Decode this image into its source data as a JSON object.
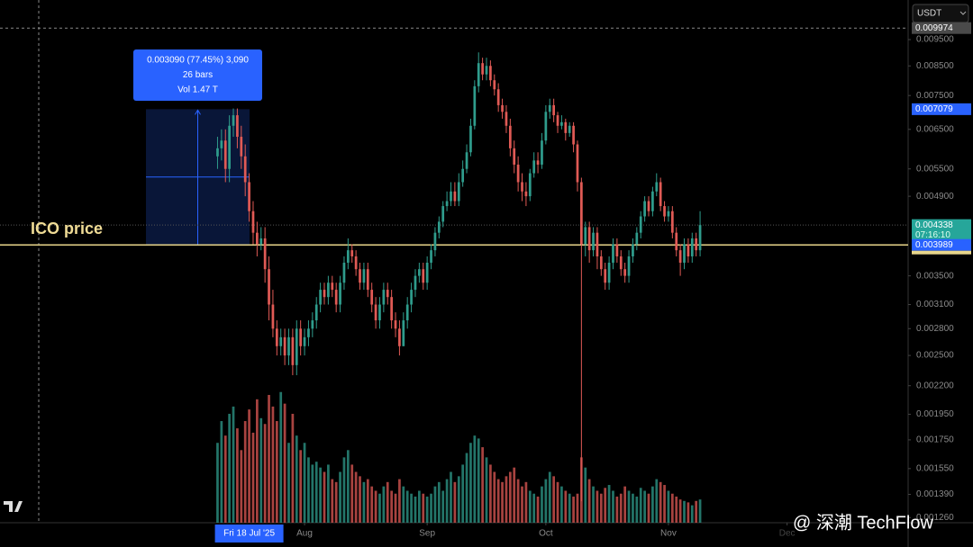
{
  "chart_data": {
    "type": "candlestick",
    "currency": "USDT",
    "annotation": "ICO price",
    "tooltip": {
      "lines": [
        "0.003090 (77.45%) 3,090",
        "26 bars",
        "Vol 1.47 T"
      ]
    },
    "watermark": "@ 深潮 TechFlow",
    "up_color": "#2f9c8c",
    "down_color": "#e05a55",
    "log_scale": true,
    "ylim": [
      0.001233,
      0.01123
    ],
    "xlim": [
      -55,
      174.6
    ],
    "volume_ylim": [
      0,
      360
    ],
    "yticks": [
      {
        "value": 0.0095,
        "label": "0.009500"
      },
      {
        "value": 0.0085,
        "label": "0.008500"
      },
      {
        "value": 0.0075,
        "label": "0.007500"
      },
      {
        "value": 0.0065,
        "label": "0.006500"
      },
      {
        "value": 0.0055,
        "label": "0.005500"
      },
      {
        "value": 0.0049,
        "label": "0.004900"
      },
      {
        "value": 0.0035,
        "label": "0.003500"
      },
      {
        "value": 0.0031,
        "label": "0.003100"
      },
      {
        "value": 0.0028,
        "label": "0.002800"
      },
      {
        "value": 0.0025,
        "label": "0.002500"
      },
      {
        "value": 0.0022,
        "label": "0.002200"
      },
      {
        "value": 0.00195,
        "label": "0.001950"
      },
      {
        "value": 0.00175,
        "label": "0.001750"
      },
      {
        "value": 0.00155,
        "label": "0.001550"
      },
      {
        "value": 0.00139,
        "label": "0.001390"
      },
      {
        "value": 0.00126,
        "label": "0.001260"
      }
    ],
    "price_labels": [
      {
        "value": 0.009974,
        "label": "0.009974",
        "color": "#4a4a4a"
      },
      {
        "value": 0.007079,
        "label": "0.007079",
        "color": "#2962ff"
      },
      {
        "value": 0.004338,
        "label": "0.004338",
        "color": "#26a69a",
        "countdown": "07:16:10"
      },
      {
        "value": 0.003989,
        "label": "0.003989",
        "color": "#2962ff"
      }
    ],
    "xticks": [
      {
        "value": 8,
        "label": "Fri 18 Jul '25",
        "highlight": true
      },
      {
        "value": 22,
        "label": "Aug"
      },
      {
        "value": 53,
        "label": "Sep"
      },
      {
        "value": 83,
        "label": "Oct"
      },
      {
        "value": 114,
        "label": "Nov"
      },
      {
        "value": 144,
        "label": "Dec",
        "faded": true
      }
    ],
    "ohlc": [
      [
        0.0058,
        0.0063,
        0.0055,
        0.006
      ],
      [
        0.006,
        0.0065,
        0.0057,
        0.0062
      ],
      [
        0.0062,
        0.0065,
        0.0052,
        0.0055
      ],
      [
        0.0055,
        0.0069,
        0.0052,
        0.0066
      ],
      [
        0.0066,
        0.0071,
        0.0063,
        0.0069
      ],
      [
        0.0069,
        0.0071,
        0.006,
        0.0063
      ],
      [
        0.0063,
        0.0066,
        0.0055,
        0.0058
      ],
      [
        0.0058,
        0.0061,
        0.0049,
        0.0052
      ],
      [
        0.0052,
        0.0054,
        0.0044,
        0.0046
      ],
      [
        0.0046,
        0.0048,
        0.004,
        0.0042
      ],
      [
        0.0042,
        0.0044,
        0.0038,
        0.004
      ],
      [
        0.004,
        0.0043,
        0.0039,
        0.0041
      ],
      [
        0.0041,
        0.0043,
        0.0034,
        0.0036
      ],
      [
        0.0036,
        0.0038,
        0.0029,
        0.0031
      ],
      [
        0.0031,
        0.0033,
        0.0027,
        0.0028
      ],
      [
        0.0028,
        0.0029,
        0.0025,
        0.0026
      ],
      [
        0.0026,
        0.0028,
        0.0025,
        0.0027
      ],
      [
        0.0027,
        0.0028,
        0.0024,
        0.0025
      ],
      [
        0.0025,
        0.0028,
        0.0024,
        0.0027
      ],
      [
        0.0027,
        0.0028,
        0.0023,
        0.0024
      ],
      [
        0.0024,
        0.0029,
        0.0023,
        0.0028
      ],
      [
        0.0028,
        0.0029,
        0.0025,
        0.0026
      ],
      [
        0.0026,
        0.0028,
        0.0025,
        0.0027
      ],
      [
        0.0027,
        0.0029,
        0.0026,
        0.0028
      ],
      [
        0.0028,
        0.003,
        0.0027,
        0.0029
      ],
      [
        0.0029,
        0.0032,
        0.0028,
        0.0031
      ],
      [
        0.0031,
        0.0034,
        0.003,
        0.0033
      ],
      [
        0.0033,
        0.0034,
        0.0031,
        0.0032
      ],
      [
        0.0032,
        0.0035,
        0.0031,
        0.0034
      ],
      [
        0.0034,
        0.0035,
        0.0032,
        0.0033
      ],
      [
        0.0033,
        0.0034,
        0.003,
        0.0031
      ],
      [
        0.0031,
        0.0035,
        0.003,
        0.0034
      ],
      [
        0.0034,
        0.0038,
        0.0033,
        0.0037
      ],
      [
        0.0037,
        0.0041,
        0.0036,
        0.0039
      ],
      [
        0.0039,
        0.004,
        0.0037,
        0.0038
      ],
      [
        0.0038,
        0.0039,
        0.0035,
        0.0036
      ],
      [
        0.0036,
        0.0037,
        0.0033,
        0.0034
      ],
      [
        0.0034,
        0.0037,
        0.0033,
        0.0036
      ],
      [
        0.0036,
        0.0037,
        0.0032,
        0.0033
      ],
      [
        0.0033,
        0.0034,
        0.003,
        0.0031
      ],
      [
        0.0031,
        0.0032,
        0.0028,
        0.0029
      ],
      [
        0.0029,
        0.0032,
        0.0028,
        0.0031
      ],
      [
        0.0031,
        0.0034,
        0.003,
        0.0033
      ],
      [
        0.0033,
        0.0034,
        0.0031,
        0.0032
      ],
      [
        0.0032,
        0.0033,
        0.0028,
        0.0029
      ],
      [
        0.0029,
        0.003,
        0.0027,
        0.0028
      ],
      [
        0.0028,
        0.0029,
        0.0025,
        0.0026
      ],
      [
        0.0026,
        0.003,
        0.0026,
        0.0029
      ],
      [
        0.0029,
        0.0032,
        0.0028,
        0.0031
      ],
      [
        0.0031,
        0.0034,
        0.003,
        0.0033
      ],
      [
        0.0033,
        0.0036,
        0.0032,
        0.0035
      ],
      [
        0.0035,
        0.0037,
        0.0034,
        0.0036
      ],
      [
        0.0036,
        0.0037,
        0.0033,
        0.0034
      ],
      [
        0.0034,
        0.0038,
        0.0033,
        0.0037
      ],
      [
        0.0037,
        0.004,
        0.0036,
        0.0039
      ],
      [
        0.0039,
        0.0043,
        0.0038,
        0.0042
      ],
      [
        0.0042,
        0.0045,
        0.0041,
        0.0044
      ],
      [
        0.0044,
        0.0048,
        0.0043,
        0.0047
      ],
      [
        0.0047,
        0.005,
        0.0046,
        0.0048
      ],
      [
        0.0048,
        0.0052,
        0.0047,
        0.005
      ],
      [
        0.005,
        0.0052,
        0.0047,
        0.0048
      ],
      [
        0.0048,
        0.0054,
        0.0047,
        0.0052
      ],
      [
        0.0052,
        0.0057,
        0.0051,
        0.0055
      ],
      [
        0.0055,
        0.0061,
        0.0054,
        0.0059
      ],
      [
        0.0059,
        0.0068,
        0.0058,
        0.0066
      ],
      [
        0.0066,
        0.008,
        0.0065,
        0.0078
      ],
      [
        0.0078,
        0.009,
        0.0076,
        0.0086
      ],
      [
        0.0086,
        0.0088,
        0.008,
        0.0082
      ],
      [
        0.0082,
        0.0088,
        0.008,
        0.0085
      ],
      [
        0.0085,
        0.0087,
        0.0078,
        0.008
      ],
      [
        0.008,
        0.0082,
        0.0075,
        0.0077
      ],
      [
        0.0077,
        0.0079,
        0.007,
        0.0072
      ],
      [
        0.0072,
        0.0074,
        0.0068,
        0.007
      ],
      [
        0.007,
        0.0072,
        0.0064,
        0.0066
      ],
      [
        0.0066,
        0.0068,
        0.0058,
        0.006
      ],
      [
        0.006,
        0.0062,
        0.0054,
        0.0056
      ],
      [
        0.0056,
        0.0058,
        0.005,
        0.0052
      ],
      [
        0.0052,
        0.0054,
        0.0048,
        0.005
      ],
      [
        0.005,
        0.0052,
        0.0047,
        0.0049
      ],
      [
        0.0049,
        0.0055,
        0.0048,
        0.0054
      ],
      [
        0.0054,
        0.0059,
        0.0053,
        0.0057
      ],
      [
        0.0057,
        0.0059,
        0.0054,
        0.0056
      ],
      [
        0.0056,
        0.0064,
        0.0055,
        0.0062
      ],
      [
        0.0062,
        0.0072,
        0.0061,
        0.007
      ],
      [
        0.007,
        0.0074,
        0.0068,
        0.0072
      ],
      [
        0.0072,
        0.0074,
        0.0067,
        0.0069
      ],
      [
        0.0069,
        0.007,
        0.0064,
        0.0066
      ],
      [
        0.0066,
        0.0069,
        0.0065,
        0.0067
      ],
      [
        0.0067,
        0.0068,
        0.0062,
        0.0064
      ],
      [
        0.0064,
        0.0067,
        0.0063,
        0.0066
      ],
      [
        0.0066,
        0.0067,
        0.0059,
        0.0061
      ],
      [
        0.0061,
        0.0062,
        0.005,
        0.0052
      ],
      [
        0.0052,
        0.0053,
        0.00135,
        0.004
      ],
      [
        0.004,
        0.0044,
        0.0038,
        0.0043
      ],
      [
        0.0043,
        0.0044,
        0.0037,
        0.0039
      ],
      [
        0.0039,
        0.0043,
        0.0038,
        0.0042
      ],
      [
        0.0042,
        0.0043,
        0.0036,
        0.0038
      ],
      [
        0.0038,
        0.0039,
        0.0035,
        0.0036
      ],
      [
        0.0036,
        0.0037,
        0.0033,
        0.0034
      ],
      [
        0.0034,
        0.0038,
        0.0033,
        0.0037
      ],
      [
        0.0037,
        0.0041,
        0.0036,
        0.004
      ],
      [
        0.004,
        0.0041,
        0.0037,
        0.0038
      ],
      [
        0.0038,
        0.0039,
        0.0035,
        0.0036
      ],
      [
        0.0036,
        0.0037,
        0.0034,
        0.0035
      ],
      [
        0.0035,
        0.0039,
        0.0034,
        0.0038
      ],
      [
        0.0038,
        0.0041,
        0.0037,
        0.004
      ],
      [
        0.004,
        0.0043,
        0.0039,
        0.0042
      ],
      [
        0.0042,
        0.0046,
        0.0041,
        0.0045
      ],
      [
        0.0045,
        0.0049,
        0.0044,
        0.0048
      ],
      [
        0.0048,
        0.0049,
        0.0045,
        0.0046
      ],
      [
        0.0046,
        0.0051,
        0.0045,
        0.005
      ],
      [
        0.005,
        0.0054,
        0.0049,
        0.0052
      ],
      [
        0.0052,
        0.0053,
        0.0046,
        0.0047
      ],
      [
        0.0047,
        0.0048,
        0.0044,
        0.0045
      ],
      [
        0.0045,
        0.0047,
        0.0044,
        0.0046
      ],
      [
        0.0046,
        0.0047,
        0.0041,
        0.0042
      ],
      [
        0.0042,
        0.0043,
        0.0038,
        0.0039
      ],
      [
        0.0039,
        0.004,
        0.0035,
        0.0037
      ],
      [
        0.0037,
        0.0041,
        0.0036,
        0.004
      ],
      [
        0.004,
        0.0041,
        0.0037,
        0.0038
      ],
      [
        0.0038,
        0.0042,
        0.0037,
        0.0041
      ],
      [
        0.0041,
        0.0042,
        0.0038,
        0.0039
      ],
      [
        0.0039,
        0.0046,
        0.0038,
        0.004338
      ]
    ],
    "volume": [
      55,
      70,
      60,
      75,
      80,
      65,
      50,
      70,
      78,
      62,
      85,
      72,
      68,
      88,
      80,
      70,
      90,
      82,
      55,
      75,
      60,
      50,
      55,
      45,
      40,
      42,
      38,
      35,
      40,
      30,
      28,
      35,
      45,
      50,
      40,
      35,
      32,
      28,
      30,
      25,
      22,
      20,
      25,
      28,
      22,
      20,
      30,
      25,
      22,
      20,
      18,
      22,
      20,
      18,
      20,
      25,
      28,
      22,
      30,
      35,
      28,
      32,
      40,
      48,
      55,
      60,
      58,
      52,
      45,
      40,
      35,
      30,
      28,
      32,
      35,
      38,
      30,
      25,
      28,
      22,
      20,
      18,
      25,
      30,
      35,
      32,
      28,
      25,
      22,
      20,
      18,
      20,
      45,
      38,
      30,
      25,
      22,
      20,
      24,
      26,
      22,
      18,
      20,
      25,
      22,
      20,
      18,
      24,
      22,
      20,
      25,
      30,
      28,
      26,
      22,
      20,
      18,
      16,
      15,
      14,
      12,
      15,
      16
    ]
  }
}
